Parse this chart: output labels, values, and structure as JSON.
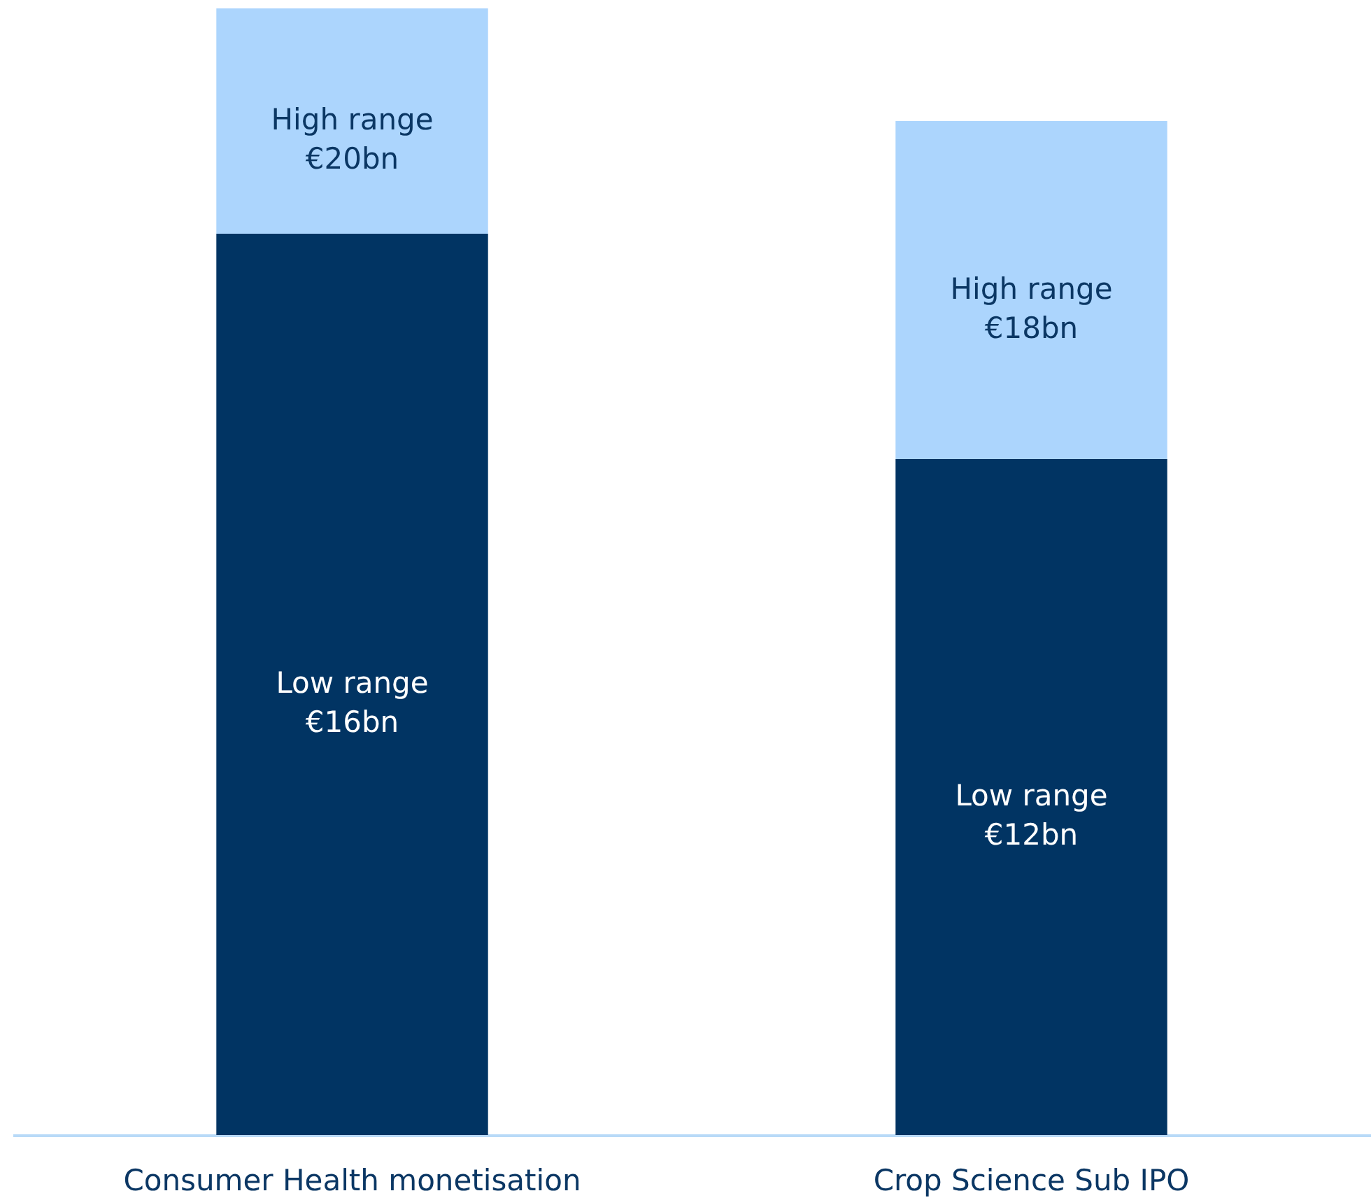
{
  "chart_data": {
    "type": "bar",
    "stacked": true,
    "tick_labels": "x",
    "categories": [
      "Consumer Health monetisation",
      "Crop Science Sub IPO"
    ],
    "series": [
      {
        "name": "Low range",
        "color": "#013463",
        "values": [
          16,
          12
        ],
        "value_labels": [
          "€16bn",
          "€12bn"
        ]
      },
      {
        "name": "High range",
        "color": "#acd5fd",
        "values": [
          4,
          6
        ]
      }
    ],
    "totals": [
      "€20bn",
      "€18bn"
    ]
  }
}
